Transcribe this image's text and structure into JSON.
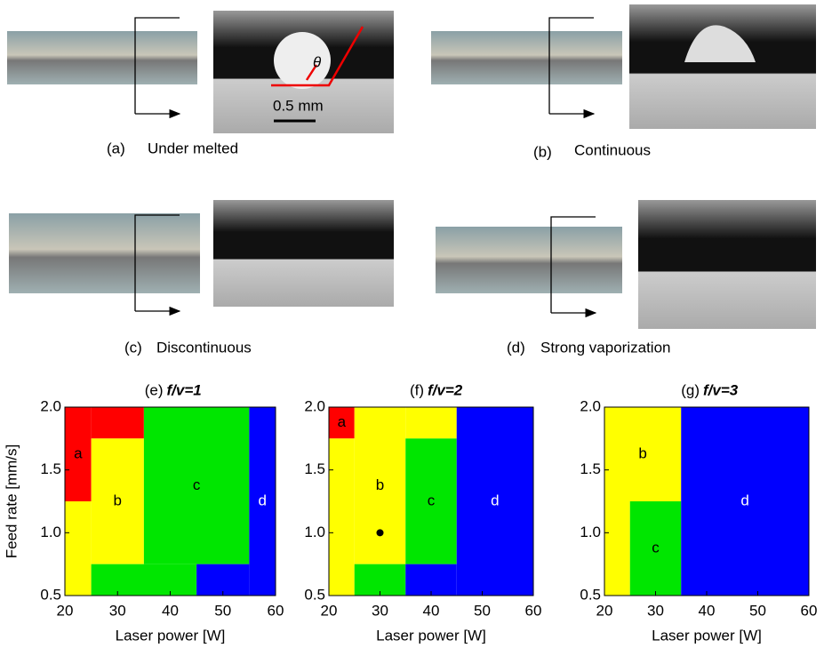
{
  "panels": [
    {
      "label": "(a)",
      "caption": "Under melted"
    },
    {
      "label": "(b)",
      "caption": "Continuous"
    },
    {
      "label": "(c)",
      "caption": "Discontinuous"
    },
    {
      "label": "(d)",
      "caption": "Strong vaporization"
    }
  ],
  "annotations": {
    "angle": "θ",
    "scale_bar": "0.5 mm"
  },
  "chart_data": [
    {
      "type": "region",
      "panel": "(e)",
      "title": "f/v=1",
      "xlabel": "Laser power [W]",
      "ylabel": "Feed rate [mm/s]",
      "xlim": [
        20,
        60
      ],
      "xticks": [
        20,
        30,
        40,
        50,
        60
      ],
      "ylim": [
        0.5,
        2.0
      ],
      "yticks": [
        0.5,
        {
          "value": 1.0,
          "label": "1.0"
        },
        1.5,
        {
          "value": 2.0,
          "label": "2.0"
        }
      ],
      "regions": [
        {
          "name": "a",
          "color": "#ff0000",
          "rects": [
            [
              20,
              25,
              1.25,
              2.0
            ],
            [
              25,
              35,
              1.75,
              2.0
            ]
          ]
        },
        {
          "name": "b",
          "color": "#ffff00",
          "rects": [
            [
              25,
              35,
              0.75,
              1.75
            ],
            [
              20,
              25,
              0.5,
              1.25
            ]
          ]
        },
        {
          "name": "c",
          "color": "#00e600",
          "rects": [
            [
              35,
              55,
              0.75,
              2.0
            ],
            [
              25,
              45,
              0.5,
              0.75
            ]
          ]
        },
        {
          "name": "d",
          "color": "#0000ff",
          "rects": [
            [
              45,
              55,
              0.5,
              0.75
            ],
            [
              55,
              60,
              0.5,
              2.0
            ]
          ]
        }
      ]
    },
    {
      "type": "region",
      "panel": "(f)",
      "title": "f/v=2",
      "xlabel": "Laser power [W]",
      "xlim": [
        20,
        60
      ],
      "xticks": [
        20,
        30,
        40,
        50,
        60
      ],
      "ylim": [
        0.5,
        2.0
      ],
      "yticks": [
        0.5,
        {
          "value": 1.0,
          "label": "1.0"
        },
        1.5,
        {
          "value": 2.0,
          "label": "2.0"
        }
      ],
      "regions": [
        {
          "name": "a",
          "color": "#ff0000",
          "rects": [
            [
              20,
              25,
              1.75,
              2.0
            ]
          ]
        },
        {
          "name": "b",
          "color": "#ffff00",
          "rects": [
            [
              25,
              35,
              0.75,
              2.0
            ],
            [
              20,
              25,
              0.5,
              1.75
            ],
            [
              35,
              45,
              1.75,
              2.0
            ]
          ]
        },
        {
          "name": "c",
          "color": "#00e600",
          "rects": [
            [
              35,
              45,
              0.75,
              1.75
            ],
            [
              25,
              35,
              0.5,
              0.75
            ]
          ]
        },
        {
          "name": "d",
          "color": "#0000ff",
          "rects": [
            [
              45,
              60,
              0.5,
              2.0
            ],
            [
              35,
              45,
              0.5,
              0.75
            ]
          ]
        }
      ],
      "points": [
        [
          30,
          1.0
        ]
      ]
    },
    {
      "type": "region",
      "panel": "(g)",
      "title": "f/v=3",
      "xlabel": "Laser power [W]",
      "xlim": [
        20,
        60
      ],
      "xticks": [
        20,
        30,
        40,
        50,
        60
      ],
      "ylim": [
        0.5,
        2.0
      ],
      "yticks": [
        0.5,
        {
          "value": 1.0,
          "label": "1.0"
        },
        1.5,
        {
          "value": 2.0,
          "label": "2.0"
        }
      ],
      "regions": [
        {
          "name": "b",
          "color": "#ffff00",
          "rects": [
            [
              20,
              35,
              1.25,
              2.0
            ],
            [
              20,
              25,
              0.5,
              1.25
            ]
          ]
        },
        {
          "name": "c",
          "color": "#00e600",
          "rects": [
            [
              25,
              35,
              0.5,
              1.25
            ]
          ]
        },
        {
          "name": "d",
          "color": "#0000ff",
          "rects": [
            [
              35,
              60,
              0.5,
              2.0
            ]
          ]
        }
      ]
    }
  ]
}
